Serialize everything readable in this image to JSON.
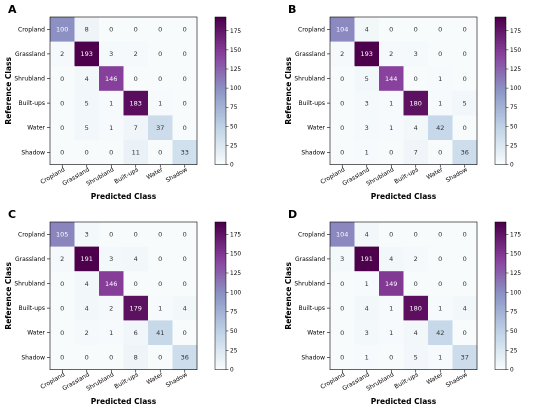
{
  "chart_data": [
    {
      "type": "heatmap",
      "panel_label": "A",
      "xlabel": "Predicted Class",
      "ylabel": "Reference Class",
      "categories": [
        "Cropland",
        "Grassland",
        "Shrubland",
        "Built-ups",
        "Water",
        "Shadow"
      ],
      "values": [
        [
          100,
          8,
          0,
          0,
          0,
          0
        ],
        [
          2,
          193,
          3,
          2,
          0,
          0
        ],
        [
          0,
          4,
          146,
          0,
          0,
          0
        ],
        [
          0,
          5,
          1,
          183,
          1,
          0
        ],
        [
          0,
          5,
          1,
          7,
          37,
          0
        ],
        [
          0,
          0,
          0,
          11,
          0,
          33
        ]
      ],
      "colorbar_range": [
        0,
        193
      ],
      "colorbar_ticks": [
        0,
        25,
        50,
        75,
        100,
        125,
        150,
        175
      ],
      "colormap": [
        "#f7fbfc",
        "#bfd3e6",
        "#8c96c6",
        "#88419d",
        "#4d004b"
      ]
    },
    {
      "type": "heatmap",
      "panel_label": "B",
      "xlabel": "Predicted Class",
      "ylabel": "Reference Class",
      "categories": [
        "Cropland",
        "Grassland",
        "Shrubland",
        "Built-ups",
        "Water",
        "Shadow"
      ],
      "values": [
        [
          104,
          4,
          0,
          0,
          0,
          0
        ],
        [
          2,
          193,
          2,
          3,
          0,
          0
        ],
        [
          0,
          5,
          144,
          0,
          1,
          0
        ],
        [
          0,
          3,
          1,
          180,
          1,
          5
        ],
        [
          0,
          3,
          1,
          4,
          42,
          0
        ],
        [
          0,
          1,
          0,
          7,
          0,
          36
        ]
      ],
      "colorbar_range": [
        0,
        193
      ],
      "colorbar_ticks": [
        0,
        25,
        50,
        75,
        100,
        125,
        150,
        175
      ],
      "colormap": [
        "#f7fbfc",
        "#bfd3e6",
        "#8c96c6",
        "#88419d",
        "#4d004b"
      ]
    },
    {
      "type": "heatmap",
      "panel_label": "C",
      "xlabel": "Predicted Class",
      "ylabel": "Reference Class",
      "categories": [
        "Cropland",
        "Grassland",
        "Shrubland",
        "Built-ups",
        "Water",
        "Shadow"
      ],
      "values": [
        [
          105,
          3,
          0,
          0,
          0,
          0
        ],
        [
          2,
          191,
          3,
          4,
          0,
          0
        ],
        [
          0,
          4,
          146,
          0,
          0,
          0
        ],
        [
          0,
          4,
          2,
          179,
          1,
          4
        ],
        [
          0,
          2,
          1,
          6,
          41,
          0
        ],
        [
          0,
          0,
          0,
          8,
          0,
          36
        ]
      ],
      "colorbar_range": [
        0,
        191
      ],
      "colorbar_ticks": [
        0,
        25,
        50,
        75,
        100,
        125,
        150,
        175
      ],
      "colormap": [
        "#f7fbfc",
        "#bfd3e6",
        "#8c96c6",
        "#88419d",
        "#4d004b"
      ]
    },
    {
      "type": "heatmap",
      "panel_label": "D",
      "xlabel": "Predicted Class",
      "ylabel": "Reference Class",
      "categories": [
        "Cropland",
        "Grassland",
        "Shrubland",
        "Built-ups",
        "Water",
        "Shadow"
      ],
      "values": [
        [
          104,
          4,
          0,
          0,
          0,
          0
        ],
        [
          3,
          191,
          4,
          2,
          0,
          0
        ],
        [
          0,
          1,
          149,
          0,
          0,
          0
        ],
        [
          0,
          4,
          1,
          180,
          1,
          4
        ],
        [
          0,
          3,
          1,
          4,
          42,
          0
        ],
        [
          0,
          1,
          0,
          5,
          1,
          37
        ]
      ],
      "colorbar_range": [
        0,
        191
      ],
      "colorbar_ticks": [
        0,
        25,
        50,
        75,
        100,
        125,
        150,
        175
      ],
      "colormap": [
        "#f7fbfc",
        "#bfd3e6",
        "#8c96c6",
        "#88419d",
        "#4d004b"
      ]
    }
  ]
}
